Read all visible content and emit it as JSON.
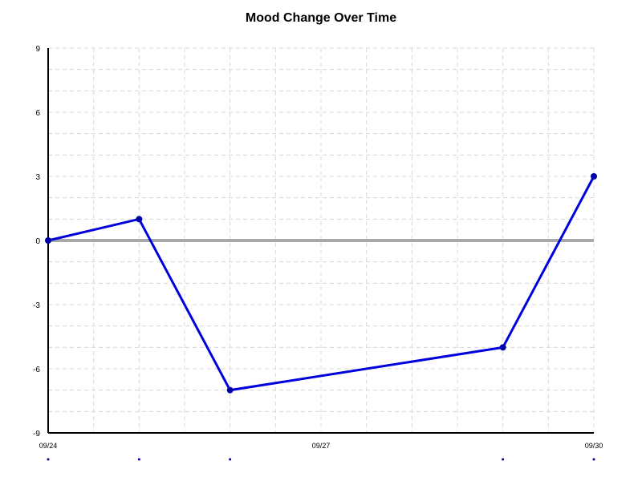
{
  "chart_data": {
    "type": "line",
    "title": "Mood Change Over Time",
    "xlabel": "",
    "ylabel": "",
    "x": [
      "09/24",
      "09/25",
      "09/26",
      "09/29",
      "09/30"
    ],
    "xlim": [
      "09/24",
      "09/30"
    ],
    "x_tick_labels": [
      "09/24",
      "09/27",
      "09/30"
    ],
    "ylim": [
      -9,
      9
    ],
    "y_tick_labels": [
      "9",
      "6",
      "3",
      "0",
      "-3",
      "-6",
      "-9"
    ],
    "grid": true,
    "reference_line_y": 0,
    "series": [
      {
        "values": [
          0,
          1,
          -7,
          -5,
          3
        ]
      }
    ],
    "colors": {
      "series": "#0000dd",
      "marker": "#0000a8",
      "zero_line": "#a8a8a8",
      "grid": "#d8d8d8",
      "axis": "#000000"
    }
  }
}
